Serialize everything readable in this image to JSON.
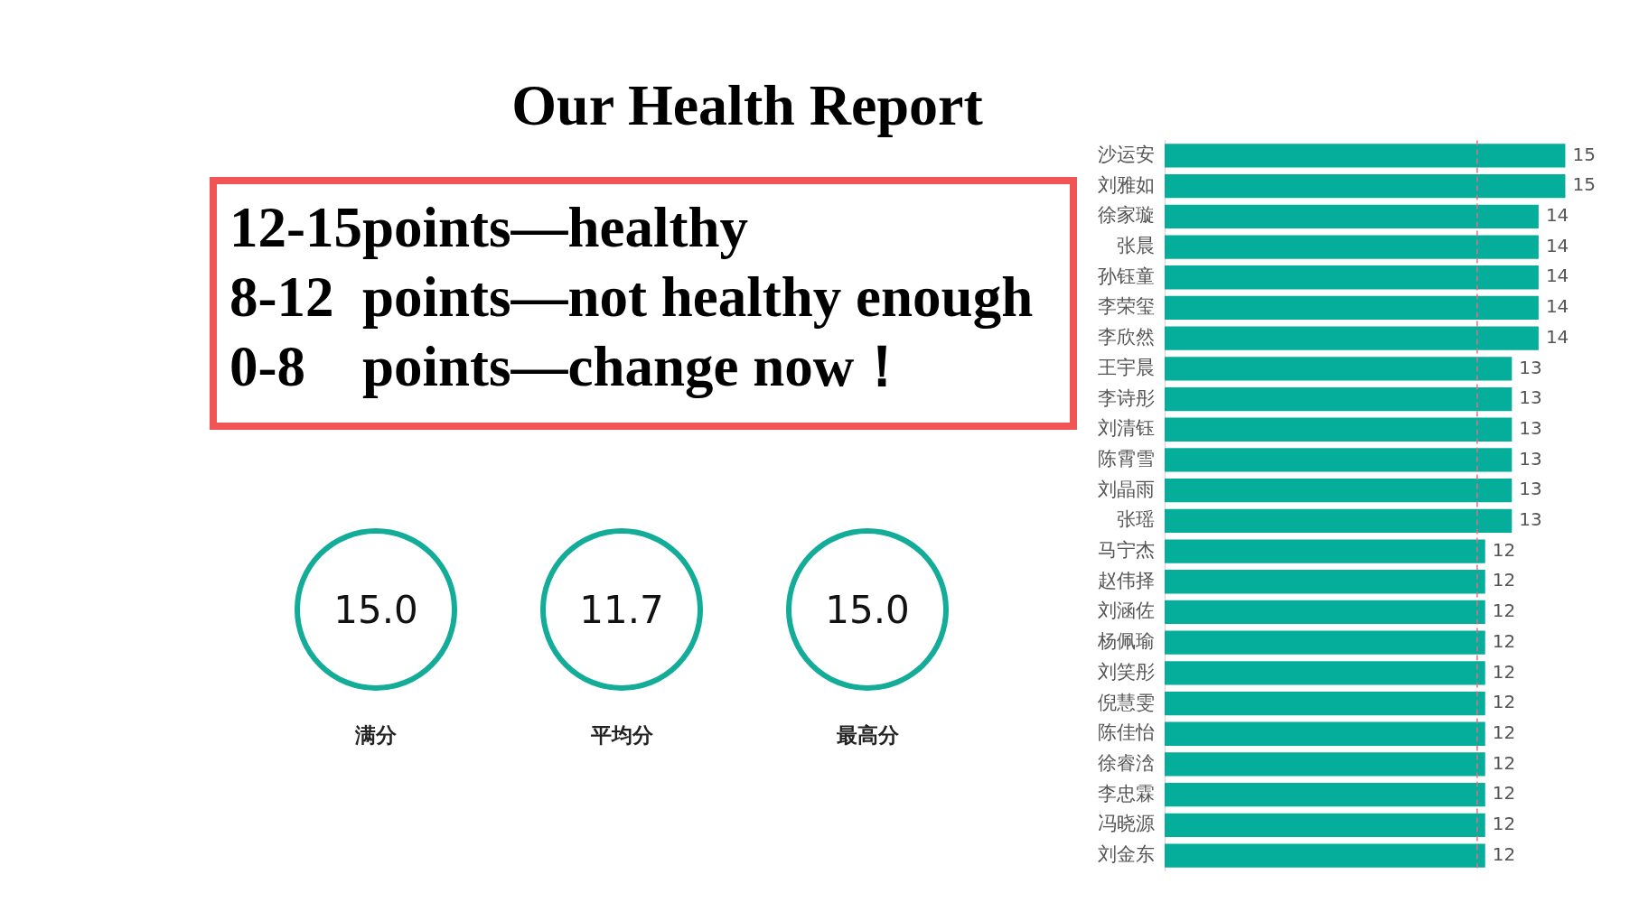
{
  "chart_data": [
    {
      "type": "other",
      "title": "Our Health Report",
      "annotations": [
        "12-15points—healthy",
        "8-12  points—not healthy enough",
        "0-8    points—change now！"
      ],
      "categories": [
        "满分",
        "平均分",
        "最高分"
      ],
      "value_labels": [
        "15.0",
        "11.7",
        "15.0"
      ],
      "color": "#12ac98"
    },
    {
      "type": "bar",
      "orientation": "horizontal",
      "color": "#05ae9a",
      "data_labels": true,
      "categories": [
        "沙运安",
        "刘雅如",
        "徐家璇",
        "张晨",
        "孙钰童",
        "李荣玺",
        "李欣然",
        "王宇晨",
        "李诗彤",
        "刘清钰",
        "陈霄雪",
        "刘晶雨",
        "张瑶",
        "马宁杰",
        "赵伟择",
        "刘涵佐",
        "杨佩瑜",
        "刘笑彤",
        "倪慧雯",
        "陈佳怡",
        "徐睿浛",
        "李忠霖",
        "冯晓源",
        "刘金东"
      ],
      "values": [
        15,
        15,
        14,
        14,
        14,
        14,
        14,
        13,
        13,
        13,
        13,
        13,
        13,
        12,
        12,
        12,
        12,
        12,
        12,
        12,
        12,
        12,
        12,
        12
      ],
      "ref_lines": [
        {
          "axis": "x",
          "value": 11.7,
          "color": "#e07080",
          "line_style": "dashed"
        }
      ]
    }
  ]
}
